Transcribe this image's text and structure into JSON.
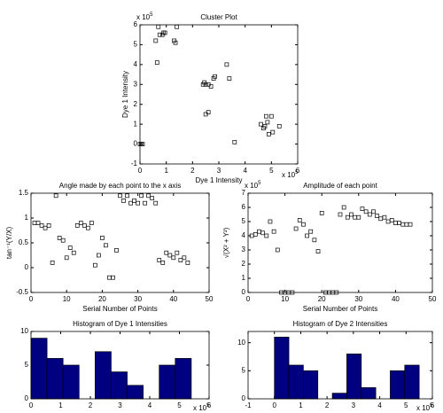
{
  "chart_data": [
    {
      "type": "scatter",
      "title": "Cluster Plot",
      "xlabel": "Dye 1 Intensity",
      "ylabel": "Dye 1 Intensity",
      "x_exponent": {
        "base": "x 10",
        "power": "5"
      },
      "y_exponent": {
        "base": "x 10",
        "power": "5"
      },
      "color": "#000000",
      "x": [
        0,
        0.05,
        0.1,
        0.6,
        0.75,
        0.85,
        0.9,
        0.65,
        0.95,
        1.3,
        1.35,
        1.4,
        0.7,
        2.4,
        2.5,
        2.6,
        2.7,
        2.8,
        2.85,
        3.3,
        3.4,
        2.5,
        2.6,
        2.45,
        3.6,
        4.6,
        4.7,
        4.75,
        4.8,
        4.9,
        5.0,
        5.05,
        5.3,
        4.85
      ],
      "y": [
        0,
        0,
        0,
        5.2,
        5.5,
        5.5,
        5.6,
        4.1,
        5.6,
        5.2,
        5.1,
        5.9,
        5.9,
        3.0,
        3.0,
        3.0,
        2.9,
        3.3,
        3.4,
        4.0,
        3.3,
        1.5,
        1.6,
        3.1,
        0.1,
        1.0,
        0.8,
        0.9,
        1.4,
        0.5,
        1.4,
        0.6,
        0.9,
        1.1
      ],
      "xlim": [
        0,
        6
      ],
      "xticks": [
        0,
        1,
        2,
        3,
        4,
        5,
        6
      ],
      "ylim": [
        -1,
        6
      ],
      "yticks": [
        -1,
        0,
        1,
        2,
        3,
        4,
        5,
        6
      ]
    },
    {
      "type": "scatter",
      "title": "Angle made by each point to the x axis",
      "xlabel": "Serial Number of Points",
      "ylabel": "tan⁻¹(Y/X)",
      "color": "#000000",
      "x": [
        1,
        2,
        3,
        4,
        5,
        6,
        7,
        8,
        9,
        10,
        11,
        12,
        13,
        14,
        15,
        16,
        17,
        18,
        19,
        20,
        21,
        22,
        23,
        24,
        25,
        26,
        27,
        28,
        29,
        30,
        31,
        32,
        33,
        34,
        35,
        36,
        37,
        38,
        39,
        40,
        41,
        42,
        43,
        44
      ],
      "y": [
        0.9,
        0.9,
        0.85,
        0.8,
        0.85,
        0.1,
        1.45,
        0.6,
        0.55,
        0.2,
        0.4,
        0.3,
        0.85,
        0.9,
        0.85,
        0.8,
        0.9,
        0.05,
        0.25,
        0.6,
        0.45,
        -0.2,
        -0.2,
        0.35,
        1.45,
        1.35,
        1.45,
        1.3,
        1.35,
        1.3,
        1.45,
        1.3,
        1.45,
        1.4,
        1.3,
        0.15,
        0.1,
        0.3,
        0.25,
        0.2,
        0.3,
        0.15,
        0.2,
        0.1
      ],
      "xlim": [
        0,
        50
      ],
      "xticks": [
        0,
        10,
        20,
        30,
        40,
        50
      ],
      "ylim": [
        -0.5,
        1.5
      ],
      "yticks": [
        -0.5,
        0,
        0.5,
        1,
        1.5
      ]
    },
    {
      "type": "scatter",
      "title": "Amplitude of each point",
      "xlabel": "Serial Number of Points",
      "ylabel": "√(X² + Y²)",
      "y_exponent": {
        "base": "x 10",
        "power": "5"
      },
      "color": "#000000",
      "x": [
        1,
        2,
        3,
        4,
        5,
        6,
        7,
        8,
        9,
        10,
        11,
        12,
        13,
        14,
        15,
        16,
        17,
        18,
        19,
        20,
        21,
        22,
        23,
        24,
        25,
        26,
        27,
        28,
        29,
        30,
        31,
        32,
        33,
        34,
        35,
        36,
        37,
        38,
        39,
        40,
        41,
        42,
        43,
        44
      ],
      "y": [
        4.0,
        4.1,
        4.3,
        4.2,
        4.0,
        5.0,
        4.3,
        3.0,
        0,
        0,
        0,
        0,
        4.5,
        5.1,
        4.8,
        4.0,
        4.3,
        3.7,
        2.9,
        5.6,
        0,
        0,
        0,
        0,
        5.5,
        6.0,
        5.3,
        5.5,
        5.3,
        5.3,
        5.9,
        5.7,
        5.5,
        5.7,
        5.4,
        5.2,
        5.3,
        5.0,
        5.1,
        4.9,
        4.9,
        4.8,
        4.8,
        4.8
      ],
      "xlim": [
        0,
        50
      ],
      "xticks": [
        0,
        10,
        20,
        30,
        40,
        50
      ],
      "ylim": [
        0,
        7
      ],
      "yticks": [
        0,
        1,
        2,
        3,
        4,
        5,
        6,
        7
      ]
    },
    {
      "type": "histogram",
      "title": "Histogram of Dye 1 Intensities",
      "x_exponent": {
        "base": "x 10",
        "power": "5"
      },
      "color": "#000080",
      "bins": [
        0,
        0.54,
        1.08,
        1.62,
        2.16,
        2.7,
        3.24,
        3.78,
        4.32,
        4.86,
        5.4
      ],
      "counts": [
        9,
        6,
        5,
        0,
        7,
        4,
        2,
        0,
        5,
        6
      ],
      "xlim": [
        0,
        6
      ],
      "xticks": [
        0,
        1,
        2,
        3,
        4,
        5,
        6
      ],
      "ylim": [
        0,
        10
      ],
      "yticks": [
        0,
        5,
        10
      ]
    },
    {
      "type": "histogram",
      "title": "Histogram of Dye 2 Intensities",
      "x_exponent": {
        "base": "x 10",
        "power": "5"
      },
      "color": "#000080",
      "bins": [
        0,
        0.55,
        1.1,
        1.65,
        2.2,
        2.75,
        3.3,
        3.85,
        4.4,
        4.95,
        5.5
      ],
      "counts": [
        11,
        6,
        5,
        0,
        1,
        8,
        2,
        0,
        5,
        6
      ],
      "xlim": [
        -1,
        6
      ],
      "xticks": [
        -1,
        0,
        1,
        2,
        3,
        4,
        5,
        6
      ],
      "ylim": [
        0,
        12
      ],
      "yticks": [
        0,
        5,
        10
      ]
    }
  ]
}
